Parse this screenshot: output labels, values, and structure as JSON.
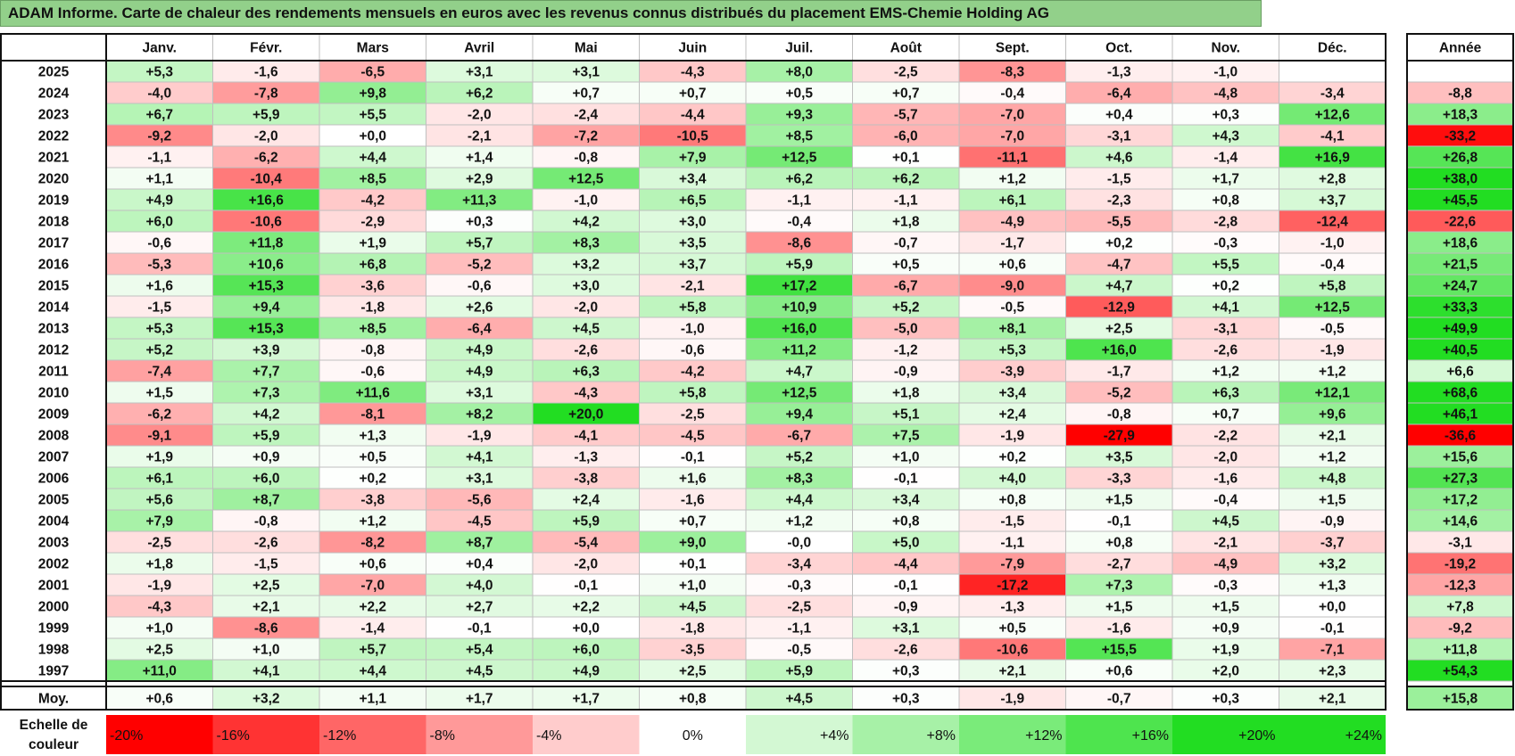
{
  "title": "ADAM Informe. Carte de chaleur des rendements mensuels en euros avec les revenus connus distribués du placement EMS-Chemie Holding AG",
  "colors": {
    "title_bg": "#92d08a",
    "neg_max": "#ff0000",
    "pos_max": "#22dd22",
    "neutral": "#ffffff"
  },
  "chart_data": {
    "type": "heatmap",
    "months": [
      "Janv.",
      "Févr.",
      "Mars",
      "Avril",
      "Mai",
      "Juin",
      "Juil.",
      "Août",
      "Sept.",
      "Oct.",
      "Nov.",
      "Déc."
    ],
    "year_header": "Année",
    "average_label": "Moy.",
    "rows": [
      {
        "year": "2025",
        "values": [
          "+5,3",
          "-1,6",
          "-6,5",
          "+3,1",
          "+3,1",
          "-4,3",
          "+8,0",
          "-2,5",
          "-8,3",
          "-1,3",
          "-1,0",
          ""
        ],
        "total": ""
      },
      {
        "year": "2024",
        "values": [
          "-4,0",
          "-7,8",
          "+9,8",
          "+6,2",
          "+0,7",
          "+0,7",
          "+0,5",
          "+0,7",
          "-0,4",
          "-6,4",
          "-4,8",
          "-3,4"
        ],
        "total": "-8,8"
      },
      {
        "year": "2023",
        "values": [
          "+6,7",
          "+5,9",
          "+5,5",
          "-2,0",
          "-2,4",
          "-4,4",
          "+9,3",
          "-5,7",
          "-7,0",
          "+0,4",
          "+0,3",
          "+12,6"
        ],
        "total": "+18,3"
      },
      {
        "year": "2022",
        "values": [
          "-9,2",
          "-2,0",
          "+0,0",
          "-2,1",
          "-7,2",
          "-10,5",
          "+8,5",
          "-6,0",
          "-7,0",
          "-3,1",
          "+4,3",
          "-4,1"
        ],
        "total": "-33,2"
      },
      {
        "year": "2021",
        "values": [
          "-1,1",
          "-6,2",
          "+4,4",
          "+1,4",
          "-0,8",
          "+7,9",
          "+12,5",
          "+0,1",
          "-11,1",
          "+4,6",
          "-1,4",
          "+16,9"
        ],
        "total": "+26,8"
      },
      {
        "year": "2020",
        "values": [
          "+1,1",
          "-10,4",
          "+8,5",
          "+2,9",
          "+12,5",
          "+3,4",
          "+6,2",
          "+6,2",
          "+1,2",
          "-1,5",
          "+1,7",
          "+2,8"
        ],
        "total": "+38,0"
      },
      {
        "year": "2019",
        "values": [
          "+4,9",
          "+16,6",
          "-4,2",
          "+11,3",
          "-1,0",
          "+6,5",
          "-1,1",
          "-1,1",
          "+6,1",
          "-2,3",
          "+0,8",
          "+3,7"
        ],
        "total": "+45,5"
      },
      {
        "year": "2018",
        "values": [
          "+6,0",
          "-10,6",
          "-2,9",
          "+0,3",
          "+4,2",
          "+3,0",
          "-0,4",
          "+1,8",
          "-4,9",
          "-5,5",
          "-2,8",
          "-12,4"
        ],
        "total": "-22,6"
      },
      {
        "year": "2017",
        "values": [
          "-0,6",
          "+11,8",
          "+1,9",
          "+5,7",
          "+8,3",
          "+3,5",
          "-8,6",
          "-0,7",
          "-1,7",
          "+0,2",
          "-0,3",
          "-1,0"
        ],
        "total": "+18,6"
      },
      {
        "year": "2016",
        "values": [
          "-5,3",
          "+10,6",
          "+6,8",
          "-5,2",
          "+3,2",
          "+3,7",
          "+5,9",
          "+0,5",
          "+0,6",
          "-4,7",
          "+5,5",
          "-0,4"
        ],
        "total": "+21,5"
      },
      {
        "year": "2015",
        "values": [
          "+1,6",
          "+15,3",
          "-3,6",
          "-0,6",
          "+3,0",
          "-2,1",
          "+17,2",
          "-6,7",
          "-9,0",
          "+4,7",
          "+0,2",
          "+5,8"
        ],
        "total": "+24,7"
      },
      {
        "year": "2014",
        "values": [
          "-1,5",
          "+9,4",
          "-1,8",
          "+2,6",
          "-2,0",
          "+5,8",
          "+10,9",
          "+5,2",
          "-0,5",
          "-12,9",
          "+4,1",
          "+12,5"
        ],
        "total": "+33,3"
      },
      {
        "year": "2013",
        "values": [
          "+5,3",
          "+15,3",
          "+8,5",
          "-6,4",
          "+4,5",
          "-1,0",
          "+16,0",
          "-5,0",
          "+8,1",
          "+2,5",
          "-3,1",
          "-0,5"
        ],
        "total": "+49,9"
      },
      {
        "year": "2012",
        "values": [
          "+5,2",
          "+3,9",
          "-0,8",
          "+4,9",
          "-2,6",
          "-0,6",
          "+11,2",
          "-1,2",
          "+5,3",
          "+16,0",
          "-2,6",
          "-1,9"
        ],
        "total": "+40,5"
      },
      {
        "year": "2011",
        "values": [
          "-7,4",
          "+7,7",
          "-0,6",
          "+4,9",
          "+6,3",
          "-4,2",
          "+4,7",
          "-0,9",
          "-3,9",
          "-1,7",
          "+1,2",
          "+1,2"
        ],
        "total": "+6,6"
      },
      {
        "year": "2010",
        "values": [
          "+1,5",
          "+7,3",
          "+11,6",
          "+3,1",
          "-4,3",
          "+5,8",
          "+12,5",
          "+1,8",
          "+3,4",
          "-5,2",
          "+6,3",
          "+12,1"
        ],
        "total": "+68,6"
      },
      {
        "year": "2009",
        "values": [
          "-6,2",
          "+4,2",
          "-8,1",
          "+8,2",
          "+20,0",
          "-2,5",
          "+9,4",
          "+5,1",
          "+2,4",
          "-0,8",
          "+0,7",
          "+9,6"
        ],
        "total": "+46,1"
      },
      {
        "year": "2008",
        "values": [
          "-9,1",
          "+5,9",
          "+1,3",
          "-1,9",
          "-4,1",
          "-4,5",
          "-6,7",
          "+7,5",
          "-1,9",
          "-27,9",
          "-2,2",
          "+2,1"
        ],
        "total": "-36,6"
      },
      {
        "year": "2007",
        "values": [
          "+1,9",
          "+0,9",
          "+0,5",
          "+4,1",
          "-1,3",
          "-0,1",
          "+5,2",
          "+1,0",
          "+0,2",
          "+3,5",
          "-2,0",
          "+1,2"
        ],
        "total": "+15,6"
      },
      {
        "year": "2006",
        "values": [
          "+6,1",
          "+6,0",
          "+0,2",
          "+3,1",
          "-3,8",
          "+1,6",
          "+8,3",
          "-0,1",
          "+4,0",
          "-3,3",
          "-1,6",
          "+4,8"
        ],
        "total": "+27,3"
      },
      {
        "year": "2005",
        "values": [
          "+5,6",
          "+8,7",
          "-3,8",
          "-5,6",
          "+2,4",
          "-1,6",
          "+4,4",
          "+3,4",
          "+0,8",
          "+1,5",
          "-0,4",
          "+1,5"
        ],
        "total": "+17,2"
      },
      {
        "year": "2004",
        "values": [
          "+7,9",
          "-0,8",
          "+1,2",
          "-4,5",
          "+5,9",
          "+0,7",
          "+1,2",
          "+0,8",
          "-1,5",
          "-0,1",
          "+4,5",
          "-0,9"
        ],
        "total": "+14,6"
      },
      {
        "year": "2003",
        "values": [
          "-2,5",
          "-2,6",
          "-8,2",
          "+8,7",
          "-5,4",
          "+9,0",
          "-0,0",
          "+5,0",
          "-1,1",
          "+0,8",
          "-2,1",
          "-3,7"
        ],
        "total": "-3,1"
      },
      {
        "year": "2002",
        "values": [
          "+1,8",
          "-1,5",
          "+0,6",
          "+0,4",
          "-2,0",
          "+0,1",
          "-3,4",
          "-4,4",
          "-7,9",
          "-2,7",
          "-4,9",
          "+3,2"
        ],
        "total": "-19,2"
      },
      {
        "year": "2001",
        "values": [
          "-1,9",
          "+2,5",
          "-7,0",
          "+4,0",
          "-0,1",
          "+1,0",
          "-0,3",
          "-0,1",
          "-17,2",
          "+7,3",
          "-0,3",
          "+1,3"
        ],
        "total": "-12,3"
      },
      {
        "year": "2000",
        "values": [
          "-4,3",
          "+2,1",
          "+2,2",
          "+2,7",
          "+2,2",
          "+4,5",
          "-2,5",
          "-0,9",
          "-1,3",
          "+1,5",
          "+1,5",
          "+0,0"
        ],
        "total": "+7,8"
      },
      {
        "year": "1999",
        "values": [
          "+1,0",
          "-8,6",
          "-1,4",
          "-0,1",
          "+0,0",
          "-1,8",
          "-1,1",
          "+3,1",
          "+0,5",
          "-1,6",
          "+0,9",
          "-0,1"
        ],
        "total": "-9,2"
      },
      {
        "year": "1998",
        "values": [
          "+2,5",
          "+1,0",
          "+5,7",
          "+5,4",
          "+6,0",
          "-3,5",
          "-0,5",
          "-2,6",
          "-10,6",
          "+15,5",
          "+1,9",
          "-7,1"
        ],
        "total": "+11,8"
      },
      {
        "year": "1997",
        "values": [
          "+11,0",
          "+4,1",
          "+4,4",
          "+4,5",
          "+4,9",
          "+2,5",
          "+5,9",
          "+0,3",
          "+2,1",
          "+0,6",
          "+2,0",
          "+2,3"
        ],
        "total": "+54,3"
      }
    ],
    "average": {
      "values": [
        "+0,6",
        "+3,2",
        "+1,1",
        "+1,7",
        "+1,7",
        "+0,8",
        "+4,5",
        "+0,3",
        "-1,9",
        "-0,7",
        "+0,3",
        "+2,1"
      ],
      "total": "+15,8"
    },
    "color_scale": {
      "label": "Echelle de couleur",
      "steps": [
        "-20%",
        "-16%",
        "-12%",
        "-8%",
        "-4%",
        "0%",
        "+4%",
        "+8%",
        "+12%",
        "+16%",
        "+20%",
        "+24%"
      ]
    }
  }
}
